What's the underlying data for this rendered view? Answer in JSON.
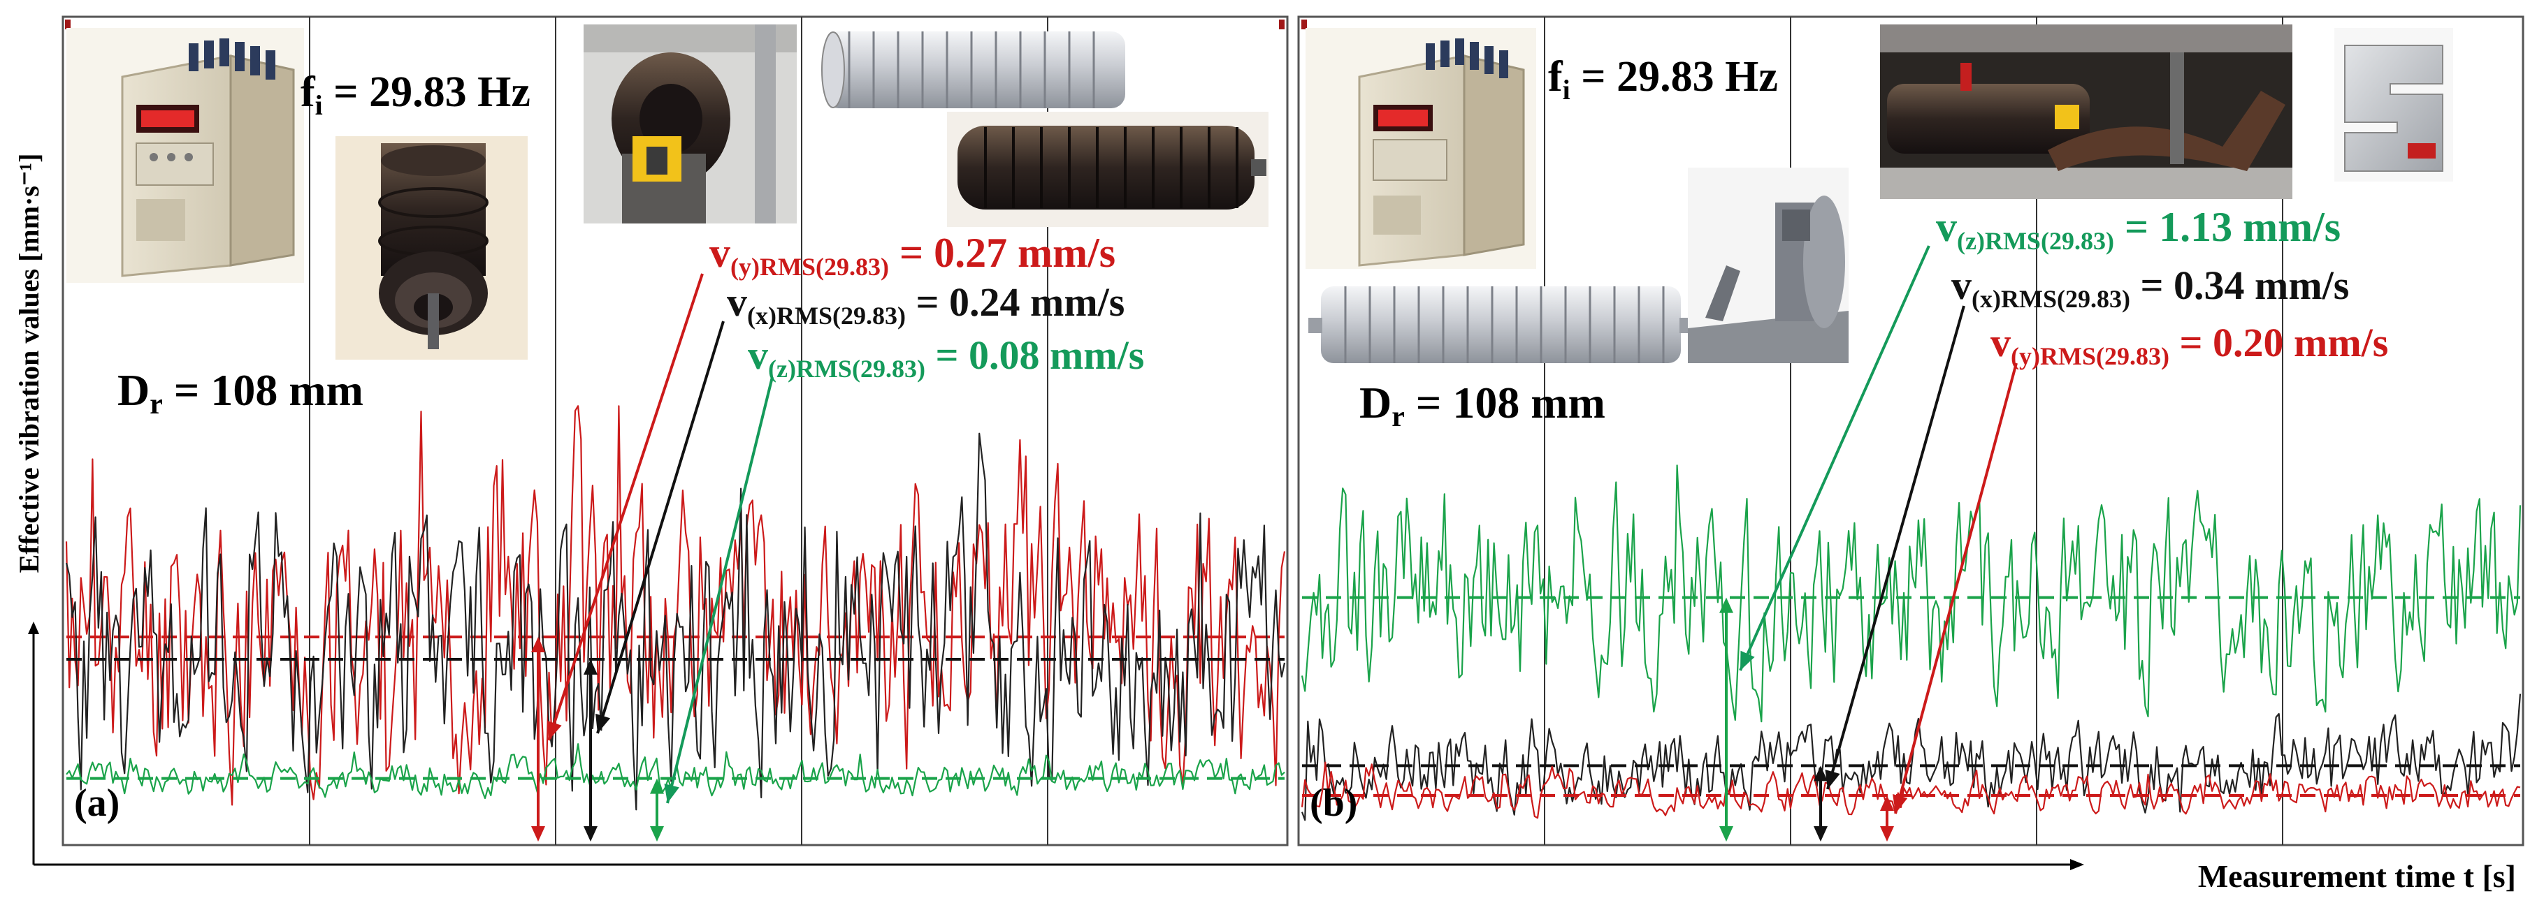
{
  "figure": {
    "y_axis_label": "Effective vibration values [mm·s⁻¹]",
    "x_axis_label": "Measurement time t [s]"
  },
  "panels": [
    {
      "label": "(a)",
      "fi": {
        "main": "f",
        "sub": "i",
        "value": " = 29.83 Hz"
      },
      "dr": {
        "main": "D",
        "sub": "r",
        "value": " = 108 mm"
      },
      "annotations": [
        {
          "v": "v",
          "sub": "(y)RMS(29.83)",
          "value": " = 0.27 mm/s",
          "color": "#cc1a1a"
        },
        {
          "v": "v",
          "sub": "(x)RMS(29.83)",
          "value": " = 0.24 mm/s",
          "color": "#111111"
        },
        {
          "v": "v",
          "sub": "(z)RMS(29.83)",
          "value": " = 0.08 mm/s",
          "color": "#149a5a"
        }
      ],
      "photos": [
        "frequency-inverter-photo",
        "roller-end-photo",
        "roller-test-stand-photo",
        "roller-cad-model-photo",
        "rubber-ring-roller-photo"
      ]
    },
    {
      "label": "(b)",
      "fi": {
        "main": "f",
        "sub": "i",
        "value": " = 29.83 Hz"
      },
      "dr": {
        "main": "D",
        "sub": "r",
        "value": " = 108 mm"
      },
      "annotations": [
        {
          "v": "v",
          "sub": "(z)RMS(29.83)",
          "value": " = 1.13 mm/s",
          "color": "#149a5a"
        },
        {
          "v": "v",
          "sub": "(x)RMS(29.83)",
          "value": " = 0.34 mm/s",
          "color": "#111111"
        },
        {
          "v": "v",
          "sub": "(y)RMS(29.83)",
          "value": " = 0.20 mm/s",
          "color": "#cc1a1a"
        }
      ],
      "photos": [
        "frequency-inverter-photo",
        "load-arm-test-stand-photo",
        "s-type-load-cell-photo",
        "roller-cad-model-photo",
        "load-arm-cad-photo"
      ]
    }
  ],
  "chart_data": [
    {
      "type": "line",
      "panel": "(a)",
      "x_range": [
        0,
        100
      ],
      "ylim": [
        0,
        0.6
      ],
      "grid": true,
      "series": [
        {
          "axis": "y",
          "color": "#cc1a1a",
          "rms": 0.27,
          "min": 0.02,
          "max": 0.58,
          "spread": 0.16,
          "seed": 11
        },
        {
          "axis": "x",
          "color": "#222222",
          "rms": 0.24,
          "min": 0.02,
          "max": 0.55,
          "spread": 0.15,
          "seed": 23
        },
        {
          "axis": "z",
          "color": "#1aa34a",
          "rms": 0.08,
          "min": 0.04,
          "max": 0.13,
          "spread": 0.02,
          "seed": 37
        }
      ]
    },
    {
      "type": "line",
      "panel": "(b)",
      "x_range": [
        0,
        100
      ],
      "ylim": [
        0,
        2.1
      ],
      "grid": true,
      "series": [
        {
          "axis": "z",
          "color": "#1aa34a",
          "rms": 1.13,
          "min": 0.4,
          "max": 2.0,
          "spread": 0.38,
          "seed": 53
        },
        {
          "axis": "x",
          "color": "#222222",
          "rms": 0.34,
          "min": 0.05,
          "max": 0.85,
          "spread": 0.16,
          "seed": 71
        },
        {
          "axis": "y",
          "color": "#cc1a1a",
          "rms": 0.2,
          "min": 0.05,
          "max": 0.42,
          "spread": 0.07,
          "seed": 89
        }
      ]
    }
  ]
}
